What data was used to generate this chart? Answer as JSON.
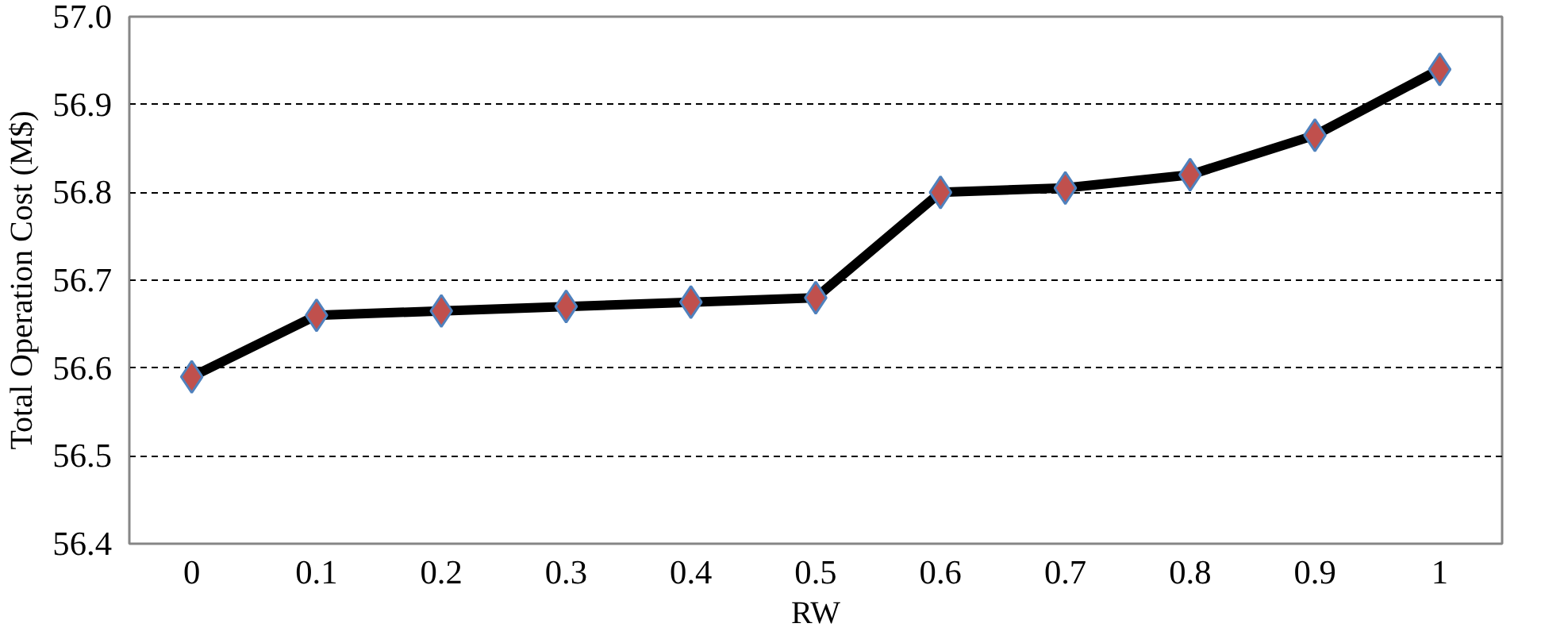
{
  "chart_data": {
    "type": "line",
    "xlabel": "RW",
    "ylabel": "Total Operation Cost (M$)",
    "categories": [
      "0",
      "0.1",
      "0.2",
      "0.3",
      "0.4",
      "0.5",
      "0.6",
      "0.7",
      "0.8",
      "0.9",
      "1"
    ],
    "series": [
      {
        "color": "#000000",
        "values": [
          56.59,
          56.66,
          56.665,
          56.67,
          56.675,
          56.68,
          56.8,
          56.805,
          56.82,
          56.865,
          56.94
        ]
      }
    ],
    "ylim": [
      56.4,
      57.0
    ],
    "yticks": [
      {
        "value": 56.4,
        "label": "56.4"
      },
      {
        "value": 56.5,
        "label": "56.5"
      },
      {
        "value": 56.6,
        "label": "56.6"
      },
      {
        "value": 56.7,
        "label": "56.7"
      },
      {
        "value": 56.8,
        "label": "56.8"
      },
      {
        "value": 56.9,
        "label": "56.9"
      },
      {
        "value": 57.0,
        "label": "57.0"
      }
    ],
    "grid": "y",
    "marker": "diamond",
    "line_style": "solid"
  }
}
